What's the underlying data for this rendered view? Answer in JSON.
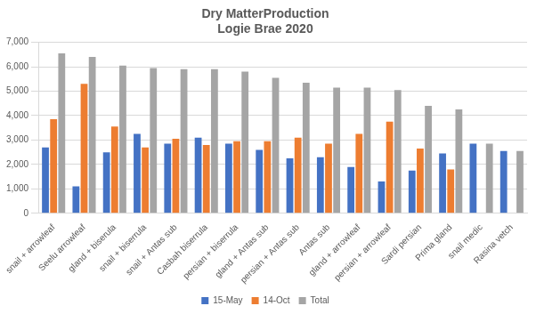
{
  "chart_data": {
    "type": "bar",
    "title": "Dry MatterProduction",
    "subtitle": "Logie Brae 2020",
    "categories": [
      "snail + arrowleaf",
      "Seelu arrowleaf",
      "gland + biserula",
      "snail + biserrula",
      "snail + Antas sub",
      "Casbah biserrula",
      "persian + biserrula",
      "gland + Antas sub",
      "persian + Antas sub",
      "Antas sub",
      "gland + arrowleaf",
      "persian + arrowleaf",
      "Sardi persian",
      "Prima gland",
      "snail medic",
      "Rasina vetch"
    ],
    "series": [
      {
        "name": "15-May",
        "color": "#4472c4",
        "values": [
          2700,
          1100,
          2500,
          3250,
          2850,
          3100,
          2850,
          2600,
          2250,
          2300,
          1900,
          1300,
          1750,
          2450,
          2850,
          2550
        ]
      },
      {
        "name": "14-Oct",
        "color": "#ed7d31",
        "values": [
          3850,
          5300,
          3550,
          2700,
          3050,
          2800,
          2950,
          2950,
          3100,
          2850,
          3250,
          3750,
          2650,
          1800,
          0,
          0
        ]
      },
      {
        "name": "Total",
        "color": "#a5a5a5",
        "values": [
          6550,
          6400,
          6050,
          5950,
          5900,
          5900,
          5800,
          5550,
          5350,
          5150,
          5150,
          5050,
          4400,
          4250,
          2850,
          2550
        ]
      }
    ],
    "ylim": [
      0,
      7000
    ],
    "yticks": [
      0,
      {
        "value": 1000,
        "label": "1,000"
      },
      {
        "value": 2000,
        "label": "2,000"
      },
      {
        "value": 3000,
        "label": "3,000"
      },
      {
        "value": 4000,
        "label": "4,000"
      },
      {
        "value": 5000,
        "label": "5,000"
      },
      {
        "value": 6000,
        "label": "6,000"
      },
      {
        "value": 7000,
        "label": "7,000"
      }
    ],
    "grid": true,
    "legend": "bottom"
  }
}
